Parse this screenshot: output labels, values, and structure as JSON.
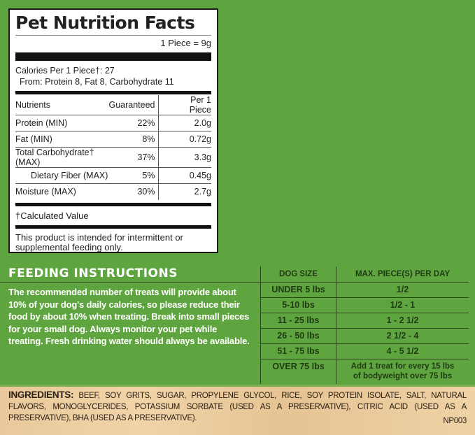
{
  "nutrition": {
    "title": "Pet Nutrition Facts",
    "serving": "1 Piece = 9g",
    "calories": "Calories Per 1 Piece†: 27",
    "calories_from": "From: Protein 8, Fat 8, Carbohydrate 11",
    "headers": [
      "Nutrients",
      "Guaranteed",
      "Per 1 Piece"
    ],
    "rows": [
      {
        "name": "Protein (MIN)",
        "guaranteed": "22%",
        "per_piece": "2.0g"
      },
      {
        "name": "Fat (MIN)",
        "guaranteed": "8%",
        "per_piece": "0.72g"
      },
      {
        "name": "Total Carbohydrate† (MAX)",
        "guaranteed": "37%",
        "per_piece": "3.3g"
      },
      {
        "name": "Dietary Fiber (MAX)",
        "guaranteed": "5%",
        "per_piece": "0.45g"
      },
      {
        "name": "Moisture (MAX)",
        "guaranteed": "30%",
        "per_piece": "2.7g"
      }
    ],
    "footnote": "†Calculated Value",
    "note": "This product is intended for intermittent or supplemental feeding only."
  },
  "feeding": {
    "heading": "FEEDING INSTRUCTIONS",
    "text": "The recommended number of treats will provide about 10% of your dog's daily calories, so please reduce their food by about 10% when treating. Break into small pieces for your small dog. Always monitor your pet while treating. Fresh drinking water should always be available.",
    "headers": [
      "DOG SIZE",
      "MAX. PIECE(S) PER DAY"
    ],
    "rows": [
      {
        "size": "UNDER 5 lbs",
        "pieces": "1/2"
      },
      {
        "size": "5-10 lbs",
        "pieces": "1/2 - 1"
      },
      {
        "size": "11 - 25 lbs",
        "pieces": "1 - 2 1/2"
      },
      {
        "size": "26 - 50 lbs",
        "pieces": "2 1/2 - 4"
      },
      {
        "size": "51 - 75 lbs",
        "pieces": "4 - 5 1/2"
      },
      {
        "size": "OVER 75 lbs",
        "pieces": "Add 1 treat for every 15 lbs of bodyweight over 75 lbs"
      }
    ]
  },
  "ingredients": {
    "label": "INGREDIENTS:",
    "text": "BEEF, SOY GRITS, SUGAR, PROPYLENE GLYCOL, RICE, SOY PROTEIN ISOLATE, SALT, NATURAL FLAVORS, MONOGLYCERIDES, POTASSIUM SORBATE (USED AS A PRESERVATIVE), CITRIC ACID (USED AS A PRESERVATIVE), BHA (USED AS A PRESERVATIVE).",
    "code": "NP003"
  },
  "colors": {
    "background": "#5fa53f",
    "panel": "#ffffff",
    "table_text": "#1f3a12",
    "ingredients_bg": "#e9c99b"
  }
}
